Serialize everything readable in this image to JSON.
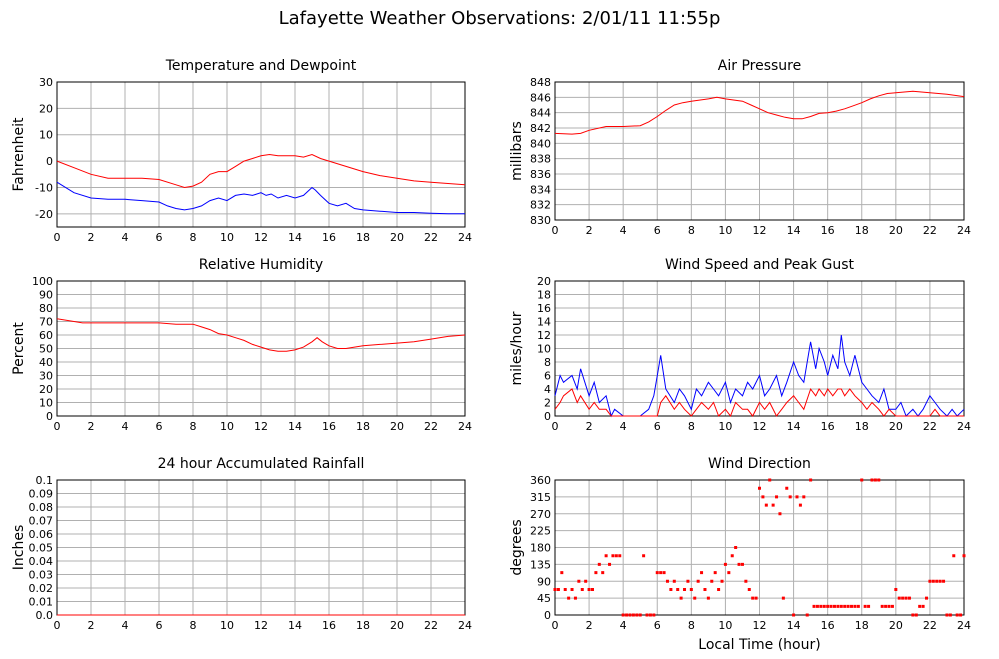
{
  "page": {
    "title": "Lafayette Weather Observations: 2/01/11 11:55p"
  },
  "colors": {
    "primary": "#ff0000",
    "secondary": "#0000ff",
    "grid": "#b0b0b0",
    "axis": "#000000"
  },
  "chart_data": [
    {
      "type": "line",
      "title": "Temperature and Dewpoint",
      "xlabel": "",
      "ylabel": "Fahrenheit",
      "xlim": [
        0,
        24
      ],
      "ylim": [
        -25,
        30
      ],
      "xticks": [
        "0",
        "2",
        "4",
        "6",
        "8",
        "10",
        "12",
        "14",
        "16",
        "18",
        "20",
        "22",
        "24"
      ],
      "yticks": [
        "30",
        "20",
        "10",
        "0",
        "-10",
        "-20"
      ],
      "series": [
        {
          "color": "#ff0000",
          "x": [
            0,
            1,
            2,
            3,
            4,
            5,
            6,
            7,
            7.5,
            8,
            8.5,
            9,
            9.5,
            10,
            10.5,
            11,
            11.5,
            12,
            12.5,
            13,
            13.5,
            14,
            14.5,
            15,
            15.5,
            16,
            17,
            18,
            19,
            20,
            21,
            22,
            23,
            24
          ],
          "y": [
            0,
            -2.5,
            -5,
            -6.5,
            -6.5,
            -6.5,
            -7,
            -9,
            -10,
            -9.5,
            -8,
            -5,
            -4,
            -4,
            -2,
            0,
            1,
            2,
            2.5,
            2,
            2,
            2,
            1.5,
            2.5,
            1,
            0,
            -2,
            -4,
            -5.5,
            -6.5,
            -7.5,
            -8,
            -8.5,
            -9
          ]
        },
        {
          "color": "#0000ff",
          "x": [
            0,
            1,
            2,
            3,
            4,
            5,
            6,
            6.5,
            7,
            7.5,
            8,
            8.5,
            9,
            9.5,
            10,
            10.5,
            11,
            11.5,
            12,
            12.3,
            12.6,
            13,
            13.5,
            14,
            14.5,
            15,
            15.2,
            15.5,
            16,
            16.5,
            17,
            17.5,
            18,
            19,
            20,
            21,
            22,
            23,
            24
          ],
          "y": [
            -8,
            -12,
            -14,
            -14.5,
            -14.5,
            -15,
            -15.5,
            -17,
            -18,
            -18.5,
            -18,
            -17,
            -15,
            -14,
            -15,
            -13,
            -12.5,
            -13,
            -12,
            -13,
            -12.5,
            -14,
            -13,
            -14,
            -13,
            -10,
            -11,
            -13,
            -16,
            -17,
            -16,
            -18,
            -18.5,
            -19,
            -19.5,
            -19.5,
            -19.8,
            -20,
            -20
          ]
        }
      ]
    },
    {
      "type": "line",
      "title": "Air Pressure",
      "xlabel": "",
      "ylabel": "millibars",
      "xlim": [
        0,
        24
      ],
      "ylim": [
        830,
        848
      ],
      "xticks": [
        "0",
        "2",
        "4",
        "6",
        "8",
        "10",
        "12",
        "14",
        "16",
        "18",
        "20",
        "22",
        "24"
      ],
      "yticks": [
        "848",
        "846",
        "844",
        "842",
        "840",
        "838",
        "836",
        "834",
        "832",
        "830"
      ],
      "series": [
        {
          "color": "#ff0000",
          "x": [
            0,
            1,
            1.5,
            2,
            3,
            4,
            5,
            5.5,
            6,
            6.5,
            7,
            7.5,
            8,
            9,
            9.5,
            10,
            11,
            11.5,
            12,
            12.5,
            13,
            13.5,
            14,
            14.5,
            15,
            15.5,
            16,
            16.5,
            17,
            17.5,
            18,
            18.5,
            19,
            19.5,
            20,
            21,
            22,
            23,
            24
          ],
          "y": [
            841.3,
            841.2,
            841.3,
            841.7,
            842.2,
            842.2,
            842.3,
            842.8,
            843.5,
            844.3,
            845,
            845.3,
            845.5,
            845.8,
            846,
            845.8,
            845.5,
            845,
            844.5,
            844,
            843.7,
            843.4,
            843.2,
            843.2,
            843.5,
            843.9,
            844,
            844.2,
            844.5,
            844.9,
            845.3,
            845.8,
            846.2,
            846.5,
            846.6,
            846.8,
            846.6,
            846.4,
            846.1
          ]
        }
      ]
    },
    {
      "type": "line",
      "title": "Relative Humidity",
      "xlabel": "",
      "ylabel": "Percent",
      "xlim": [
        0,
        24
      ],
      "ylim": [
        0,
        100
      ],
      "xticks": [
        "0",
        "2",
        "4",
        "6",
        "8",
        "10",
        "12",
        "14",
        "16",
        "18",
        "20",
        "22",
        "24"
      ],
      "yticks": [
        "100",
        "90",
        "80",
        "70",
        "60",
        "50",
        "40",
        "30",
        "20",
        "10",
        "0"
      ],
      "series": [
        {
          "color": "#ff0000",
          "x": [
            0,
            1,
            1.5,
            2,
            3,
            4,
            5,
            6,
            7,
            8,
            8.5,
            9,
            9.5,
            10,
            10.5,
            11,
            11.5,
            12,
            12.5,
            13,
            13.5,
            14,
            14.5,
            15,
            15.3,
            15.6,
            16,
            16.5,
            17,
            17.5,
            18,
            19,
            20,
            21,
            22,
            23,
            24
          ],
          "y": [
            72,
            70,
            69,
            69,
            69,
            69,
            69,
            69,
            68,
            68,
            66,
            64,
            61,
            60,
            58,
            56,
            53,
            51,
            49,
            48,
            48,
            49,
            51,
            55,
            58,
            55,
            52,
            50,
            50,
            51,
            52,
            53,
            54,
            55,
            57,
            59,
            60
          ]
        }
      ]
    },
    {
      "type": "line",
      "title": "Wind Speed and Peak Gust",
      "xlabel": "",
      "ylabel": "miles/hour",
      "xlim": [
        0,
        24
      ],
      "ylim": [
        0,
        20
      ],
      "xticks": [
        "0",
        "2",
        "4",
        "6",
        "8",
        "10",
        "12",
        "14",
        "16",
        "18",
        "20",
        "22",
        "24"
      ],
      "yticks": [
        "20",
        "18",
        "16",
        "14",
        "12",
        "10",
        "8",
        "6",
        "4",
        "2",
        "0"
      ],
      "series": [
        {
          "color": "#0000ff",
          "x": [
            0,
            0.3,
            0.5,
            1,
            1.3,
            1.5,
            2,
            2.3,
            2.6,
            3,
            3.3,
            3.5,
            4,
            4.5,
            5,
            5.5,
            5.8,
            6,
            6.2,
            6.5,
            7,
            7.3,
            7.6,
            8,
            8.3,
            8.6,
            9,
            9.3,
            9.6,
            10,
            10.3,
            10.6,
            11,
            11.3,
            11.6,
            12,
            12.3,
            12.6,
            13,
            13.3,
            13.6,
            14,
            14.3,
            14.6,
            15,
            15.3,
            15.5,
            15.8,
            16,
            16.3,
            16.6,
            16.8,
            17,
            17.3,
            17.6,
            18,
            18.3,
            18.6,
            19,
            19.3,
            19.6,
            20,
            20.3,
            20.6,
            21,
            21.3,
            21.6,
            22,
            22.3,
            22.6,
            23,
            23.3,
            23.6,
            24
          ],
          "y": [
            3,
            6,
            5,
            6,
            4,
            7,
            3,
            5,
            2,
            3,
            0,
            1,
            0,
            0,
            0,
            1,
            3,
            6,
            9,
            4,
            2,
            4,
            3,
            1,
            4,
            3,
            5,
            4,
            3,
            5,
            2,
            4,
            3,
            5,
            4,
            6,
            3,
            4,
            6,
            3,
            5,
            8,
            6,
            5,
            11,
            7,
            10,
            8,
            6,
            9,
            7,
            12,
            8,
            6,
            9,
            5,
            4,
            3,
            2,
            4,
            1,
            1,
            2,
            0,
            1,
            0,
            1,
            3,
            2,
            1,
            0,
            1,
            0,
            1
          ]
        },
        {
          "color": "#ff0000",
          "x": [
            0,
            0.3,
            0.5,
            1,
            1.3,
            1.5,
            2,
            2.3,
            2.6,
            3,
            3.3,
            3.5,
            4,
            5,
            5.5,
            6,
            6.2,
            6.5,
            7,
            7.3,
            7.6,
            8,
            8.3,
            8.6,
            9,
            9.3,
            9.6,
            10,
            10.3,
            10.6,
            11,
            11.3,
            11.6,
            12,
            12.3,
            12.6,
            13,
            13.3,
            13.6,
            14,
            14.3,
            14.6,
            15,
            15.3,
            15.5,
            15.8,
            16,
            16.3,
            16.6,
            16.8,
            17,
            17.3,
            17.6,
            18,
            18.3,
            18.6,
            19,
            19.3,
            19.6,
            20,
            21,
            21.5,
            22,
            22.3,
            22.6,
            23,
            24
          ],
          "y": [
            1,
            2,
            3,
            4,
            2,
            3,
            1,
            2,
            1,
            1,
            0,
            0,
            0,
            0,
            0,
            0,
            2,
            3,
            1,
            2,
            1,
            0,
            1,
            2,
            1,
            2,
            0,
            1,
            0,
            2,
            1,
            1,
            0,
            2,
            1,
            2,
            0,
            1,
            2,
            3,
            2,
            1,
            4,
            3,
            4,
            3,
            4,
            3,
            4,
            4,
            3,
            4,
            3,
            2,
            1,
            2,
            1,
            0,
            1,
            0,
            0,
            0,
            0,
            1,
            0,
            0,
            0
          ]
        }
      ]
    },
    {
      "type": "line",
      "title": "24 hour Accumulated Rainfall",
      "xlabel": "",
      "ylabel": "Inches",
      "xlim": [
        0,
        24
      ],
      "ylim": [
        0,
        0.1
      ],
      "xticks": [
        "0",
        "2",
        "4",
        "6",
        "8",
        "10",
        "12",
        "14",
        "16",
        "18",
        "20",
        "22",
        "24"
      ],
      "yticks": [
        "0.1",
        "0.09",
        "0.08",
        "0.07",
        "0.06",
        "0.05",
        "0.04",
        "0.03",
        "0.02",
        "0.01",
        "0.0"
      ],
      "series": [
        {
          "color": "#ff0000",
          "x": [
            0,
            24
          ],
          "y": [
            0,
            0
          ]
        }
      ]
    },
    {
      "type": "scatter",
      "title": "Wind Direction",
      "xlabel": "Local Time (hour)",
      "ylabel": "degrees",
      "xlim": [
        0,
        24
      ],
      "ylim": [
        0,
        360
      ],
      "xticks": [
        "0",
        "2",
        "4",
        "6",
        "8",
        "10",
        "12",
        "14",
        "16",
        "18",
        "20",
        "22",
        "24"
      ],
      "yticks": [
        "360",
        "315",
        "270",
        "225",
        "180",
        "135",
        "90",
        "45",
        "0"
      ],
      "series": [
        {
          "color": "#ff0000",
          "x": [
            0,
            0.2,
            0.4,
            0.6,
            0.8,
            1.0,
            1.2,
            1.4,
            1.6,
            1.8,
            2.0,
            2.2,
            2.4,
            2.6,
            2.8,
            3.0,
            3.2,
            3.4,
            3.6,
            3.8,
            4.0,
            4.2,
            4.4,
            4.6,
            4.8,
            5.0,
            5.2,
            5.4,
            5.6,
            5.8,
            6.0,
            6.2,
            6.4,
            6.6,
            6.8,
            7.0,
            7.2,
            7.4,
            7.6,
            7.8,
            8.0,
            8.2,
            8.4,
            8.6,
            8.8,
            9.0,
            9.2,
            9.4,
            9.6,
            9.8,
            10.0,
            10.2,
            10.4,
            10.6,
            10.8,
            11.0,
            11.2,
            11.4,
            11.6,
            11.8,
            12.0,
            12.2,
            12.4,
            12.6,
            12.8,
            13.0,
            13.2,
            13.4,
            13.6,
            13.8,
            14.0,
            14.2,
            14.4,
            14.6,
            14.8,
            15.0,
            15.2,
            15.4,
            15.6,
            15.8,
            16.0,
            16.2,
            16.4,
            16.6,
            16.8,
            17.0,
            17.2,
            17.4,
            17.6,
            17.8,
            18.0,
            18.2,
            18.4,
            18.6,
            18.8,
            19.0,
            19.2,
            19.4,
            19.6,
            19.8,
            20.0,
            20.2,
            20.4,
            20.6,
            20.8,
            21.0,
            21.2,
            21.4,
            21.6,
            21.8,
            22.0,
            22.2,
            22.4,
            22.6,
            22.8,
            23.0,
            23.2,
            23.4,
            23.6,
            23.8,
            24.0
          ],
          "y": [
            68,
            68,
            113,
            68,
            45,
            68,
            45,
            90,
            68,
            90,
            68,
            68,
            113,
            135,
            113,
            158,
            135,
            158,
            158,
            158,
            0,
            0,
            0,
            0,
            0,
            0,
            158,
            0,
            0,
            0,
            113,
            113,
            113,
            90,
            68,
            90,
            68,
            45,
            68,
            90,
            68,
            45,
            90,
            113,
            68,
            45,
            90,
            113,
            68,
            90,
            135,
            113,
            158,
            180,
            135,
            135,
            90,
            68,
            45,
            45,
            338,
            315,
            293,
            360,
            293,
            315,
            270,
            45,
            338,
            315,
            0,
            315,
            293,
            315,
            0,
            360,
            23,
            23,
            23,
            23,
            23,
            23,
            23,
            23,
            23,
            23,
            23,
            23,
            23,
            23,
            360,
            23,
            23,
            360,
            360,
            360,
            23,
            23,
            23,
            23,
            68,
            45,
            45,
            45,
            45,
            0,
            0,
            23,
            23,
            45,
            90,
            90,
            90,
            90,
            90,
            0,
            0,
            158,
            0,
            0,
            158
          ]
        }
      ]
    }
  ]
}
